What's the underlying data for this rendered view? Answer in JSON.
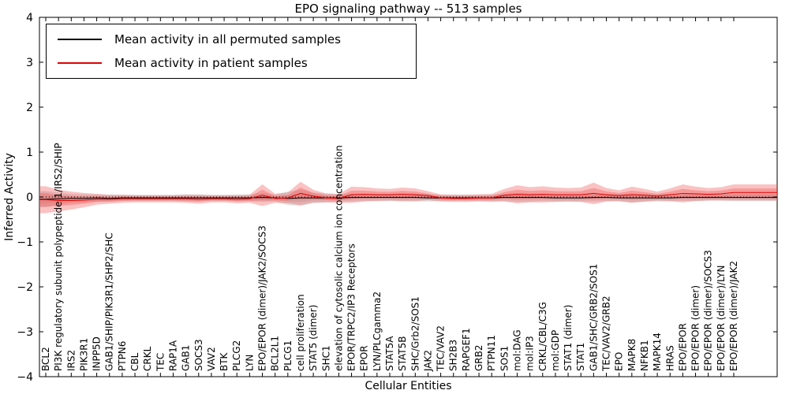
{
  "figure": {
    "title": "EPO signaling pathway -- 513 samples",
    "xlabel": "Cellular Entities",
    "ylabel": "Inferred Activity"
  },
  "legend": {
    "permuted_label": "Mean activity in all permuted samples",
    "patient_label": "Mean activity in patient samples"
  },
  "colors": {
    "permuted_line": "#000000",
    "permuted_band": "#aaaaaa",
    "patient_line": "#e00000",
    "patient_band": "#f05050"
  },
  "chart_data": {
    "type": "line",
    "title": "EPO signaling pathway -- 513 samples",
    "xlabel": "Cellular Entities",
    "ylabel": "Inferred Activity",
    "ylim": [
      -4,
      4
    ],
    "yticks": [
      4,
      3,
      2,
      1,
      0,
      -1,
      -2,
      -3,
      -4
    ],
    "grid": false,
    "zero_line": true,
    "legend_position": "upper left",
    "categories": [
      "BCL2",
      "PI3K regulatory subunit polypeptide 1/IRS2/SHIP",
      "IRS2",
      "PIK3R1",
      "INPP5D",
      "GAB1/SHIP/PIK3R1/SHP2/SHC",
      "PTPN6",
      "CBL",
      "CRKL",
      "TEC",
      "RAP1A",
      "GAB1",
      "SOCS3",
      "VAV2",
      "BTK",
      "PLCG2",
      "LYN",
      "EPO/EPOR (dimer)/JAK2/SOCS3",
      "BCL2L1",
      "PLCG1",
      "cell proliferation",
      "STAT5 (dimer)",
      "SHC1",
      "elevation of cytosolic calcium ion concentration",
      "EPOR/TRPC2/IP3 Receptors",
      "EPOR",
      "LYN/PLCgamma2",
      "STAT5A",
      "STAT5B",
      "SHC/Grb2/SOS1",
      "JAK2",
      "TEC/VAV2",
      "SH2B3",
      "RAPGEF1",
      "GRB2",
      "PTPN11",
      "SOS1",
      "mol:DAG",
      "mol:IP3",
      "CRKL/CBL/C3G",
      "mol:GDP",
      "STAT1 (dimer)",
      "STAT1",
      "GAB1/SHC/GRB2/SOS1",
      "TEC/VAV2/GRB2",
      "EPO",
      "MAPK8",
      "NFKB1",
      "MAPK14",
      "HRAS",
      "EPO/EPOR",
      "EPO/EPOR (dimer)",
      "EPO/EPOR (dimer)/SOCS3",
      "EPO/EPOR (dimer)/LYN",
      "EPO/EPOR (dimer)/JAK2"
    ],
    "series": [
      {
        "name": "Mean activity in all permuted samples",
        "color": "#000000",
        "band_color": "#aaaaaa",
        "values": [
          -0.05,
          -0.04,
          -0.03,
          -0.03,
          -0.02,
          -0.03,
          -0.02,
          -0.02,
          -0.02,
          -0.02,
          -0.02,
          -0.02,
          -0.02,
          -0.02,
          -0.02,
          -0.02,
          -0.02,
          -0.01,
          -0.02,
          -0.03,
          -0.02,
          -0.02,
          -0.02,
          -0.02,
          -0.01,
          -0.01,
          -0.01,
          -0.01,
          -0.01,
          -0.01,
          -0.02,
          -0.02,
          -0.02,
          -0.02,
          -0.02,
          -0.02,
          -0.01,
          -0.01,
          -0.01,
          -0.01,
          -0.02,
          -0.02,
          -0.02,
          -0.01,
          -0.01,
          -0.02,
          -0.02,
          -0.02,
          -0.02,
          -0.02,
          -0.01,
          -0.01,
          -0.01,
          -0.01,
          -0.01
        ],
        "band": [
          0.18,
          0.14,
          0.1,
          0.09,
          0.08,
          0.08,
          0.07,
          0.07,
          0.07,
          0.07,
          0.07,
          0.08,
          0.08,
          0.07,
          0.07,
          0.08,
          0.08,
          0.1,
          0.08,
          0.15,
          0.18,
          0.12,
          0.1,
          0.08,
          0.09,
          0.08,
          0.08,
          0.08,
          0.09,
          0.09,
          0.08,
          0.07,
          0.07,
          0.07,
          0.07,
          0.07,
          0.08,
          0.1,
          0.09,
          0.08,
          0.08,
          0.08,
          0.08,
          0.09,
          0.08,
          0.08,
          0.1,
          0.09,
          0.08,
          0.08,
          0.08,
          0.08,
          0.07,
          0.07,
          0.08
        ]
      },
      {
        "name": "Mean activity in patient samples",
        "color": "#e00000",
        "band_color": "#f05050",
        "values": [
          -0.06,
          -0.08,
          -0.08,
          -0.07,
          -0.05,
          -0.05,
          -0.04,
          -0.04,
          -0.04,
          -0.04,
          -0.04,
          -0.04,
          -0.05,
          -0.04,
          -0.04,
          -0.05,
          -0.04,
          0.04,
          -0.03,
          -0.02,
          0.08,
          0.02,
          -0.02,
          -0.03,
          0.05,
          0.06,
          0.05,
          0.05,
          0.06,
          0.05,
          0.03,
          -0.02,
          -0.03,
          -0.03,
          -0.02,
          -0.02,
          0.04,
          0.06,
          0.05,
          0.06,
          0.05,
          0.05,
          0.05,
          0.08,
          0.05,
          0.03,
          0.05,
          0.04,
          0.02,
          0.05,
          0.08,
          0.07,
          0.06,
          0.07,
          0.1
        ],
        "band": [
          0.3,
          0.24,
          0.2,
          0.16,
          0.12,
          0.1,
          0.09,
          0.08,
          0.08,
          0.08,
          0.08,
          0.09,
          0.1,
          0.08,
          0.08,
          0.09,
          0.09,
          0.24,
          0.1,
          0.12,
          0.26,
          0.14,
          0.1,
          0.1,
          0.18,
          0.16,
          0.14,
          0.13,
          0.15,
          0.14,
          0.1,
          0.08,
          0.08,
          0.08,
          0.08,
          0.09,
          0.14,
          0.2,
          0.17,
          0.18,
          0.16,
          0.15,
          0.16,
          0.24,
          0.15,
          0.12,
          0.18,
          0.14,
          0.1,
          0.14,
          0.2,
          0.16,
          0.14,
          0.15,
          0.18
        ]
      }
    ]
  }
}
